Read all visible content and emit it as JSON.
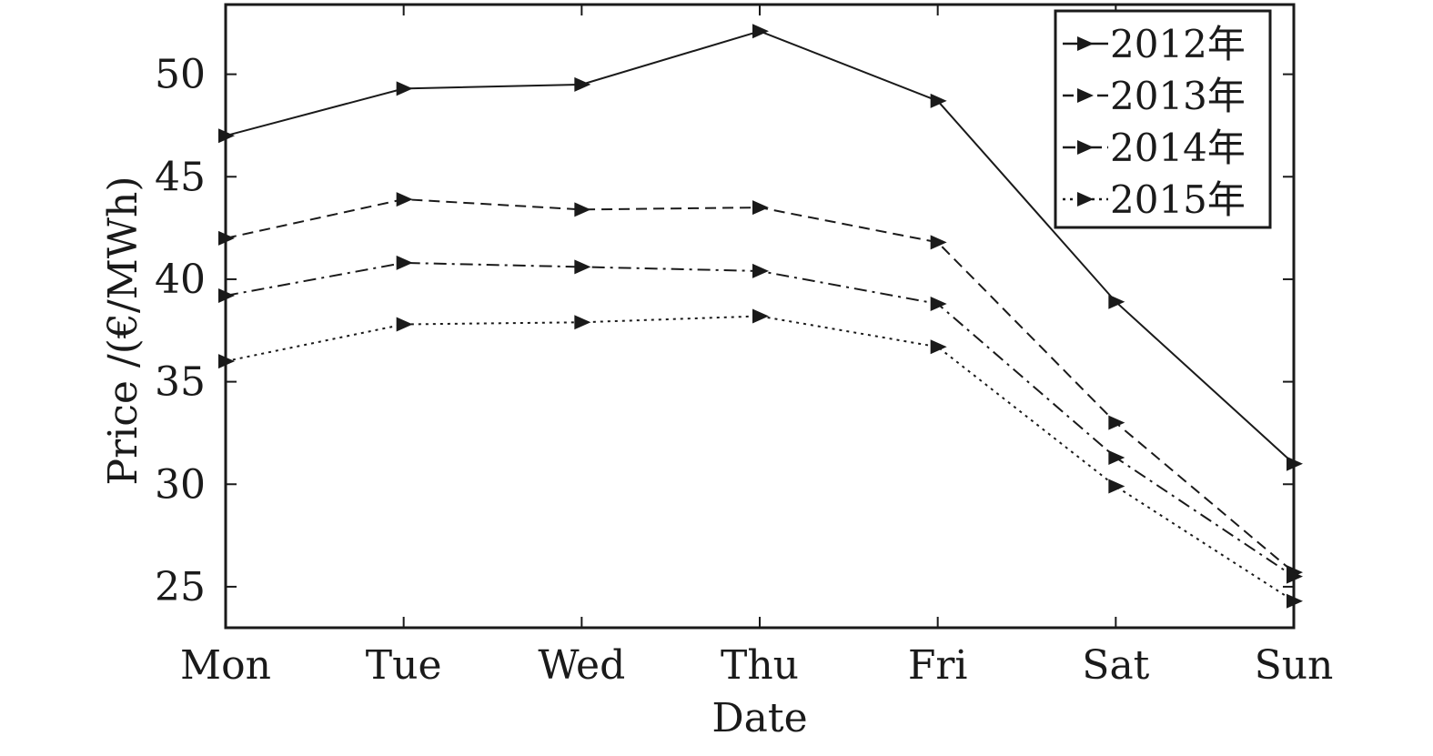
{
  "chart_data": {
    "type": "line",
    "title": "",
    "xlabel": "Date",
    "ylabel": "Price /(€/MWh)",
    "categories": [
      "Mon",
      "Tue",
      "Wed",
      "Thu",
      "Fri",
      "Sat",
      "Sun"
    ],
    "y_ticks": [
      "25",
      "30",
      "35",
      "40",
      "45",
      "50"
    ],
    "ylim": [
      23,
      53.4
    ],
    "grid": false,
    "legend_position": "top-right",
    "series": [
      {
        "name": "2012年",
        "line_style": "solid",
        "marker": "right-triangle",
        "color": "#1a1a1a",
        "values": [
          47.0,
          49.3,
          49.5,
          52.1,
          48.7,
          38.9,
          31.0
        ]
      },
      {
        "name": "2013年",
        "line_style": "dashed",
        "marker": "right-triangle",
        "color": "#1a1a1a",
        "values": [
          42.0,
          43.9,
          43.4,
          43.5,
          41.8,
          33.0,
          25.7
        ]
      },
      {
        "name": "2014年",
        "line_style": "dash-dot",
        "marker": "right-triangle",
        "color": "#1a1a1a",
        "values": [
          39.2,
          40.8,
          40.6,
          40.4,
          38.8,
          31.3,
          25.5
        ]
      },
      {
        "name": "2015年",
        "line_style": "dotted",
        "marker": "right-triangle",
        "color": "#1a1a1a",
        "values": [
          36.0,
          37.8,
          37.9,
          38.2,
          36.7,
          29.9,
          24.3
        ]
      }
    ]
  }
}
